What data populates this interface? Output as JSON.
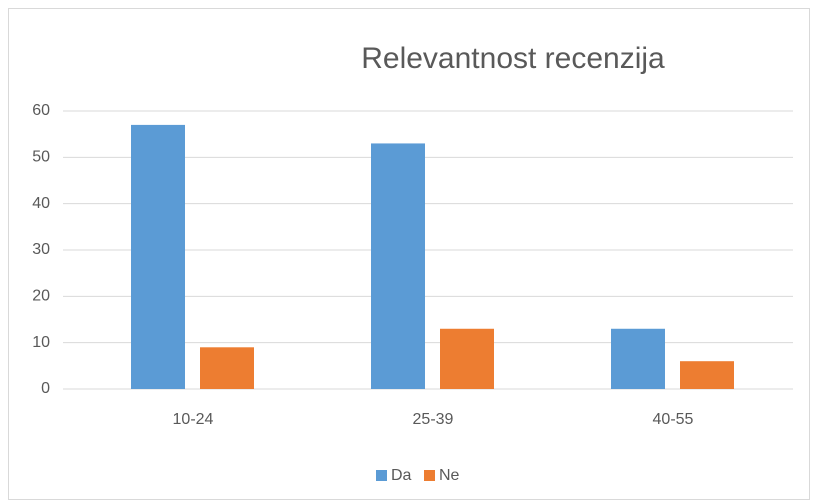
{
  "chart_data": {
    "type": "bar",
    "title": "Relevantnost recenzija",
    "categories": [
      "10-24",
      "25-39",
      "40-55"
    ],
    "series": [
      {
        "name": "Da",
        "color": "#5b9bd5",
        "values": [
          57,
          53,
          13
        ]
      },
      {
        "name": "Ne",
        "color": "#ed7d31",
        "values": [
          9,
          13,
          6
        ]
      }
    ],
    "ylim": [
      0,
      60
    ],
    "yticks": [
      0,
      10,
      20,
      30,
      40,
      50,
      60
    ],
    "grid": true,
    "legend": "bottom"
  }
}
